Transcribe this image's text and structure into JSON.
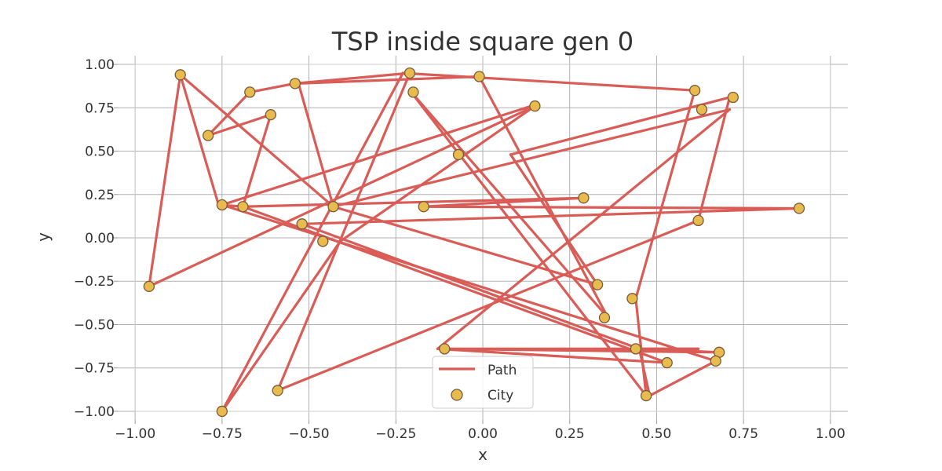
{
  "chart_data": {
    "type": "line",
    "title": "TSP inside square gen 0",
    "xlabel": "x",
    "ylabel": "y",
    "xlim": [
      -1.05,
      1.05
    ],
    "ylim": [
      -1.05,
      1.05
    ],
    "grid": true,
    "x_ticks": [
      "−1.00",
      "−0.75",
      "−0.50",
      "−0.25",
      "0.00",
      "0.25",
      "0.50",
      "0.75",
      "1.00"
    ],
    "y_ticks": [
      "1.00",
      "0.75",
      "0.50",
      "0.25",
      "0.00",
      "−0.25",
      "−0.50",
      "−0.75",
      "−1.00"
    ],
    "x_tick_values": [
      -1,
      -0.75,
      -0.5,
      -0.25,
      0,
      0.25,
      0.5,
      0.75,
      1
    ],
    "y_tick_values": [
      1,
      0.75,
      0.5,
      0.25,
      0,
      -0.25,
      -0.5,
      -0.75,
      -1
    ],
    "legend": {
      "location": "bottom-center",
      "entries": [
        {
          "label": "Path",
          "marker": "line"
        },
        {
          "label": "City",
          "marker": "circle"
        }
      ]
    },
    "colors": {
      "path": "#d95c57",
      "city_fill": "#e8bb4f",
      "city_edge": "#7a5a3a",
      "grid": "#b0b0b0"
    },
    "series": [
      {
        "name": "Path",
        "kind": "line",
        "x": [
          -0.87,
          -0.43,
          -0.53,
          -0.01,
          0.36,
          -0.21,
          0.47,
          0.44,
          0.61,
          -0.23,
          -0.75,
          -0.41,
          0.15,
          -0.96,
          -0.87,
          -0.76,
          -0.69,
          -0.61,
          -0.79,
          -0.67,
          -0.54,
          -0.21,
          -0.59,
          0.62,
          0.71,
          0.08,
          0.33,
          -0.43,
          0.71,
          -0.13,
          0.53,
          -0.69,
          0.29,
          -0.17,
          0.91,
          -0.52,
          0.45,
          0.62,
          -0.11,
          0.68,
          0.45,
          0.48,
          0.67,
          -0.75,
          0.14
        ],
        "y": [
          0.94,
          0.18,
          0.89,
          0.93,
          -0.46,
          0.85,
          -0.91,
          -0.35,
          0.85,
          0.95,
          -1.0,
          -0.02,
          0.76,
          -0.28,
          0.94,
          0.19,
          0.18,
          0.71,
          0.59,
          0.84,
          0.89,
          0.95,
          -0.88,
          0.1,
          0.81,
          0.48,
          -0.27,
          0.18,
          0.74,
          -0.64,
          -0.72,
          0.18,
          0.23,
          0.18,
          0.17,
          0.08,
          -0.64,
          -0.64,
          -0.64,
          -0.66,
          -0.64,
          -0.91,
          -0.71,
          0.19,
          0.76
        ]
      },
      {
        "name": "City",
        "kind": "scatter",
        "x": [
          -0.87,
          -0.79,
          -0.67,
          -0.61,
          -0.54,
          -0.21,
          -0.01,
          -0.2,
          0.15,
          -0.07,
          0.61,
          0.63,
          0.72,
          0.91,
          0.29,
          -0.17,
          -0.43,
          -0.52,
          -0.46,
          -0.69,
          -0.75,
          -0.96,
          0.62,
          0.33,
          0.43,
          0.35,
          0.44,
          0.53,
          0.68,
          0.67,
          0.47,
          -0.11,
          -0.59,
          -0.75
        ],
        "y": [
          0.94,
          0.59,
          0.84,
          0.71,
          0.89,
          0.95,
          0.93,
          0.84,
          0.76,
          0.48,
          0.85,
          0.74,
          0.81,
          0.17,
          0.23,
          0.18,
          0.18,
          0.08,
          -0.02,
          0.18,
          0.19,
          -0.28,
          0.1,
          -0.27,
          -0.35,
          -0.46,
          -0.64,
          -0.72,
          -0.66,
          -0.71,
          -0.91,
          -0.64,
          -0.88,
          -1.0
        ]
      }
    ]
  }
}
